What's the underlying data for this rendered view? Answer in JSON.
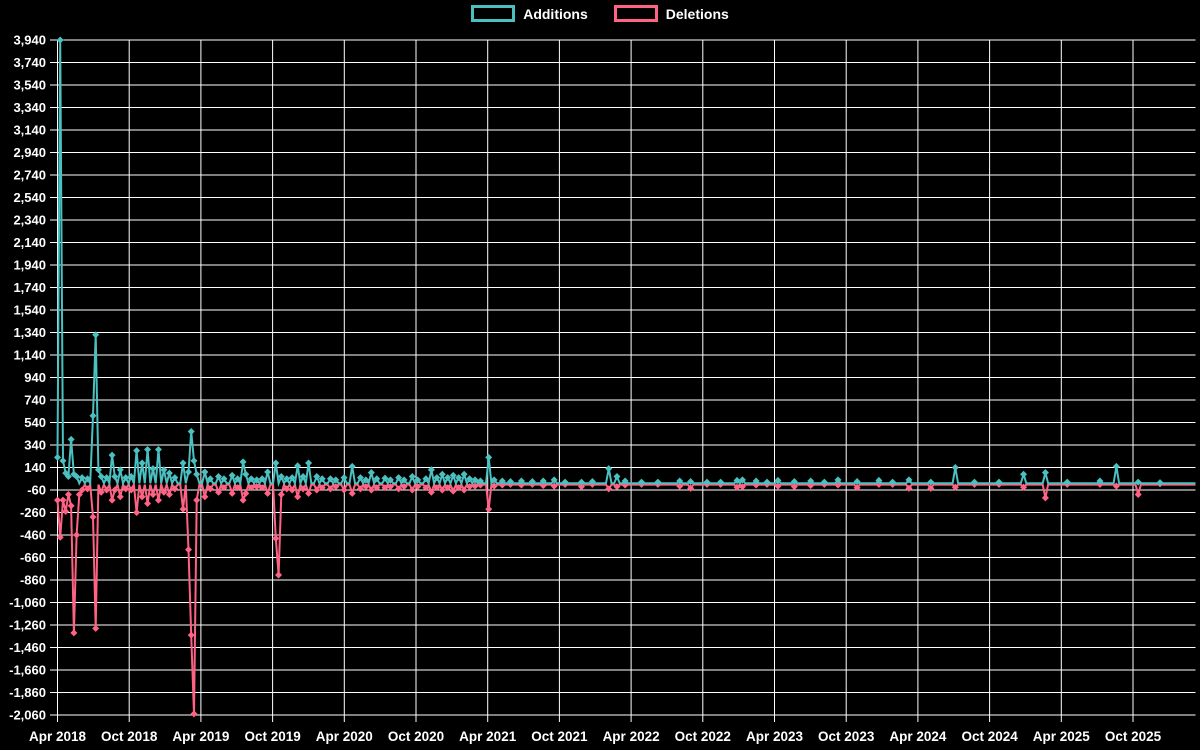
{
  "legend": {
    "items": [
      {
        "label": "Additions",
        "color": "#4bc0c0"
      },
      {
        "label": "Deletions",
        "color": "#ff6384"
      }
    ]
  },
  "chart_data": {
    "type": "line",
    "title": "",
    "xlabel": "",
    "ylabel": "",
    "legend_position": "top-center",
    "grid": true,
    "background_color": "#000000",
    "grid_color": "#ffffff",
    "text_color": "#ffffff",
    "interval": "weekly",
    "x_start_label": "Apr 2018",
    "x_end_label": "Oct 2025",
    "weeks_total": 418,
    "x_tick_labels": [
      "Apr 2018",
      "Oct 2018",
      "Apr 2019",
      "Oct 2019",
      "Apr 2020",
      "Oct 2020",
      "Apr 2021",
      "Oct 2021",
      "Apr 2022",
      "Oct 2022",
      "Apr 2023",
      "Oct 2023",
      "Apr 2024",
      "Oct 2024",
      "Apr 2025",
      "Oct 2025"
    ],
    "y_tick_labels": [
      "3,940",
      "3,740",
      "3,540",
      "3,340",
      "3,140",
      "2,940",
      "2,740",
      "2,540",
      "2,340",
      "2,140",
      "1,940",
      "1,740",
      "1,540",
      "1,340",
      "1,140",
      "940",
      "740",
      "540",
      "340",
      "140",
      "-60",
      "-260",
      "-460",
      "-660",
      "-860",
      "-1,060",
      "-1,260",
      "-1,460",
      "-1,660",
      "-1,860",
      "-2,060"
    ],
    "y_ticks": [
      3940,
      3740,
      3540,
      3340,
      3140,
      2940,
      2740,
      2540,
      2340,
      2140,
      1940,
      1740,
      1540,
      1340,
      1140,
      940,
      740,
      540,
      340,
      140,
      -60,
      -260,
      -460,
      -660,
      -860,
      -1060,
      -1260,
      -1460,
      -1660,
      -1860,
      -2060
    ],
    "ylim": [
      -2060,
      3940
    ],
    "series": [
      {
        "name": "Additions",
        "color": "#4bc0c0",
        "points": [
          [
            0,
            230
          ],
          [
            1,
            3940
          ],
          [
            2,
            200
          ],
          [
            3,
            90
          ],
          [
            4,
            60
          ],
          [
            5,
            390
          ],
          [
            6,
            80
          ],
          [
            7,
            60
          ],
          [
            9,
            50
          ],
          [
            11,
            40
          ],
          [
            13,
            600
          ],
          [
            14,
            1320
          ],
          [
            15,
            120
          ],
          [
            16,
            60
          ],
          [
            18,
            50
          ],
          [
            20,
            250
          ],
          [
            21,
            60
          ],
          [
            23,
            120
          ],
          [
            25,
            50
          ],
          [
            27,
            60
          ],
          [
            29,
            290
          ],
          [
            31,
            180
          ],
          [
            33,
            300
          ],
          [
            35,
            130
          ],
          [
            37,
            300
          ],
          [
            39,
            120
          ],
          [
            41,
            90
          ],
          [
            43,
            50
          ],
          [
            46,
            180
          ],
          [
            48,
            100
          ],
          [
            49,
            460
          ],
          [
            50,
            200
          ],
          [
            51,
            80
          ],
          [
            54,
            100
          ],
          [
            56,
            40
          ],
          [
            59,
            60
          ],
          [
            61,
            40
          ],
          [
            64,
            70
          ],
          [
            66,
            40
          ],
          [
            68,
            190
          ],
          [
            69,
            80
          ],
          [
            71,
            40
          ],
          [
            73,
            30
          ],
          [
            75,
            40
          ],
          [
            77,
            100
          ],
          [
            80,
            180
          ],
          [
            82,
            60
          ],
          [
            84,
            40
          ],
          [
            86,
            50
          ],
          [
            88,
            155
          ],
          [
            90,
            60
          ],
          [
            92,
            180
          ],
          [
            95,
            60
          ],
          [
            97,
            40
          ],
          [
            100,
            40
          ],
          [
            102,
            30
          ],
          [
            105,
            50
          ],
          [
            108,
            150
          ],
          [
            111,
            50
          ],
          [
            113,
            30
          ],
          [
            115,
            95
          ],
          [
            117,
            40
          ],
          [
            120,
            45
          ],
          [
            122,
            30
          ],
          [
            125,
            50
          ],
          [
            127,
            30
          ],
          [
            130,
            60
          ],
          [
            132,
            30
          ],
          [
            135,
            40
          ],
          [
            137,
            120
          ],
          [
            139,
            50
          ],
          [
            141,
            80
          ],
          [
            143,
            50
          ],
          [
            145,
            70
          ],
          [
            147,
            50
          ],
          [
            149,
            80
          ],
          [
            151,
            40
          ],
          [
            153,
            30
          ],
          [
            155,
            20
          ],
          [
            158,
            230
          ],
          [
            160,
            30
          ],
          [
            163,
            20
          ],
          [
            166,
            15
          ],
          [
            170,
            20
          ],
          [
            174,
            15
          ],
          [
            178,
            20
          ],
          [
            182,
            30
          ],
          [
            186,
            10
          ],
          [
            192,
            10
          ],
          [
            196,
            15
          ],
          [
            202,
            130
          ],
          [
            205,
            60
          ],
          [
            208,
            20
          ],
          [
            214,
            10
          ],
          [
            220,
            10
          ],
          [
            228,
            20
          ],
          [
            232,
            15
          ],
          [
            238,
            10
          ],
          [
            243,
            10
          ],
          [
            249,
            25
          ],
          [
            251,
            30
          ],
          [
            256,
            20
          ],
          [
            260,
            10
          ],
          [
            264,
            25
          ],
          [
            270,
            15
          ],
          [
            276,
            20
          ],
          [
            281,
            10
          ],
          [
            286,
            30
          ],
          [
            293,
            15
          ],
          [
            301,
            25
          ],
          [
            306,
            10
          ],
          [
            312,
            30
          ],
          [
            320,
            10
          ],
          [
            329,
            140
          ],
          [
            336,
            10
          ],
          [
            345,
            10
          ],
          [
            354,
            80
          ],
          [
            362,
            95
          ],
          [
            370,
            10
          ],
          [
            382,
            20
          ],
          [
            388,
            150
          ],
          [
            396,
            10
          ],
          [
            404,
            5
          ]
        ]
      },
      {
        "name": "Deletions",
        "color": "#ff6384",
        "points": [
          [
            0,
            -150
          ],
          [
            1,
            -480
          ],
          [
            2,
            -150
          ],
          [
            3,
            -250
          ],
          [
            4,
            -100
          ],
          [
            5,
            -200
          ],
          [
            6,
            -1330
          ],
          [
            7,
            -460
          ],
          [
            8,
            -100
          ],
          [
            9,
            -60
          ],
          [
            11,
            -50
          ],
          [
            13,
            -300
          ],
          [
            14,
            -1290
          ],
          [
            16,
            -80
          ],
          [
            18,
            -60
          ],
          [
            20,
            -150
          ],
          [
            21,
            -60
          ],
          [
            23,
            -120
          ],
          [
            25,
            -50
          ],
          [
            27,
            -60
          ],
          [
            29,
            -260
          ],
          [
            31,
            -120
          ],
          [
            33,
            -180
          ],
          [
            35,
            -100
          ],
          [
            37,
            -150
          ],
          [
            39,
            -80
          ],
          [
            41,
            -100
          ],
          [
            43,
            -50
          ],
          [
            46,
            -230
          ],
          [
            48,
            -590
          ],
          [
            49,
            -1350
          ],
          [
            50,
            -2050
          ],
          [
            51,
            -150
          ],
          [
            54,
            -120
          ],
          [
            56,
            -50
          ],
          [
            59,
            -80
          ],
          [
            61,
            -40
          ],
          [
            64,
            -90
          ],
          [
            66,
            -40
          ],
          [
            68,
            -150
          ],
          [
            69,
            -90
          ],
          [
            71,
            -40
          ],
          [
            73,
            -30
          ],
          [
            75,
            -40
          ],
          [
            77,
            -90
          ],
          [
            80,
            -490
          ],
          [
            81,
            -815
          ],
          [
            82,
            -100
          ],
          [
            84,
            -50
          ],
          [
            86,
            -60
          ],
          [
            88,
            -120
          ],
          [
            90,
            -50
          ],
          [
            92,
            -90
          ],
          [
            95,
            -60
          ],
          [
            97,
            -40
          ],
          [
            100,
            -50
          ],
          [
            102,
            -30
          ],
          [
            105,
            -60
          ],
          [
            108,
            -90
          ],
          [
            111,
            -50
          ],
          [
            113,
            -30
          ],
          [
            115,
            -60
          ],
          [
            117,
            -40
          ],
          [
            120,
            -40
          ],
          [
            122,
            -30
          ],
          [
            125,
            -50
          ],
          [
            127,
            -30
          ],
          [
            130,
            -60
          ],
          [
            132,
            -30
          ],
          [
            135,
            -40
          ],
          [
            137,
            -80
          ],
          [
            139,
            -40
          ],
          [
            141,
            -60
          ],
          [
            143,
            -40
          ],
          [
            145,
            -70
          ],
          [
            147,
            -40
          ],
          [
            149,
            -60
          ],
          [
            151,
            -30
          ],
          [
            153,
            -25
          ],
          [
            155,
            -15
          ],
          [
            158,
            -230
          ],
          [
            160,
            -25
          ],
          [
            163,
            -15
          ],
          [
            166,
            -10
          ],
          [
            170,
            -15
          ],
          [
            174,
            -10
          ],
          [
            178,
            -20
          ],
          [
            182,
            -25
          ],
          [
            186,
            -10
          ],
          [
            192,
            -30
          ],
          [
            196,
            -10
          ],
          [
            202,
            -50
          ],
          [
            205,
            -30
          ],
          [
            208,
            -15
          ],
          [
            214,
            -10
          ],
          [
            220,
            -10
          ],
          [
            228,
            -25
          ],
          [
            232,
            -45
          ],
          [
            238,
            -10
          ],
          [
            243,
            -10
          ],
          [
            249,
            -35
          ],
          [
            251,
            -30
          ],
          [
            256,
            -15
          ],
          [
            260,
            -10
          ],
          [
            264,
            -25
          ],
          [
            270,
            -30
          ],
          [
            276,
            -20
          ],
          [
            281,
            -10
          ],
          [
            286,
            -15
          ],
          [
            293,
            -40
          ],
          [
            301,
            -10
          ],
          [
            306,
            -10
          ],
          [
            312,
            -45
          ],
          [
            320,
            -45
          ],
          [
            329,
            -35
          ],
          [
            336,
            -10
          ],
          [
            345,
            -10
          ],
          [
            354,
            -35
          ],
          [
            362,
            -130
          ],
          [
            370,
            -10
          ],
          [
            382,
            -10
          ],
          [
            388,
            -25
          ],
          [
            396,
            -100
          ],
          [
            404,
            -5
          ]
        ]
      }
    ]
  }
}
